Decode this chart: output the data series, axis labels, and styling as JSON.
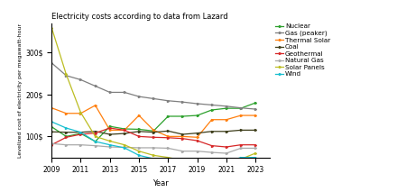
{
  "title": "Electricity costs according to data from Lazard",
  "xlabel": "Year",
  "ylabel": "Levelized cost of electricity per megawatt-hour",
  "years": [
    2009,
    2010,
    2011,
    2012,
    2013,
    2014,
    2015,
    2016,
    2017,
    2018,
    2019,
    2020,
    2021,
    2022,
    2023
  ],
  "series": {
    "Nuclear": {
      "color": "#2ca02c",
      "values": [
        123,
        100,
        107,
        88,
        124,
        118,
        117,
        113,
        148,
        148,
        150,
        163,
        167,
        167,
        180
      ]
    },
    "Gas (peaker)": {
      "color": "#7f7f7f",
      "values": [
        275,
        245,
        235,
        220,
        205,
        205,
        195,
        190,
        185,
        182,
        178,
        175,
        172,
        168,
        165
      ]
    },
    "Thermal Solar": {
      "color": "#ff7f0e",
      "values": [
        168,
        155,
        155,
        174,
        115,
        115,
        150,
        115,
        100,
        100,
        98,
        140,
        140,
        150,
        150
      ]
    },
    "Coal": {
      "color": "#3d3d1a",
      "values": [
        111,
        110,
        110,
        112,
        105,
        107,
        112,
        110,
        113,
        105,
        108,
        112,
        112,
        115,
        115
      ]
    },
    "Geothermal": {
      "color": "#d62728",
      "values": [
        80,
        98,
        105,
        108,
        120,
        115,
        100,
        98,
        97,
        95,
        90,
        78,
        75,
        80,
        80
      ]
    },
    "Natural Gas": {
      "color": "#aaaaaa",
      "values": [
        83,
        80,
        80,
        78,
        75,
        74,
        73,
        73,
        72,
        65,
        65,
        62,
        60,
        72,
        72
      ]
    },
    "Solar Panels": {
      "color": "#bcbd22",
      "values": [
        359,
        248,
        157,
        100,
        89,
        80,
        65,
        55,
        50,
        43,
        40,
        37,
        34,
        46,
        60
      ]
    },
    "Wind": {
      "color": "#17becf",
      "values": [
        135,
        120,
        110,
        88,
        80,
        73,
        55,
        47,
        45,
        42,
        42,
        40,
        38,
        50,
        50
      ]
    }
  },
  "ylim": [
    50,
    370
  ],
  "yticks": [
    100,
    200,
    300
  ],
  "figsize": [
    4.4,
    2.13
  ],
  "dpi": 100
}
